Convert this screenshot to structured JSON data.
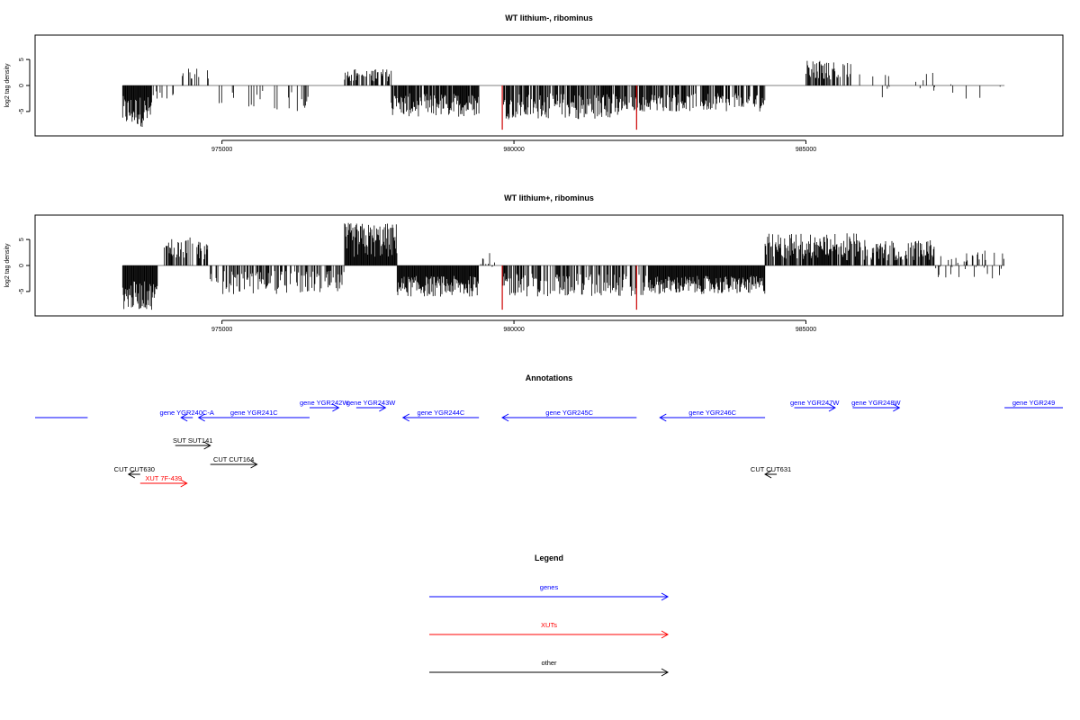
{
  "chart_data": [
    {
      "type": "bar",
      "title": "WT lithium-, ribominus",
      "ylabel": "log2 tag density",
      "xlim": [
        971800,
        989400
      ],
      "ylim": [
        -9,
        9
      ],
      "xticks": [
        975000,
        980000,
        985000
      ],
      "yticks": [
        -5,
        0,
        5
      ],
      "regions": [
        {
          "start": 973300,
          "end": 973800,
          "min": -8,
          "max": -2,
          "density": 1.0
        },
        {
          "start": 973800,
          "end": 974200,
          "min": -3,
          "max": -1,
          "density": 0.3
        },
        {
          "start": 974300,
          "end": 974800,
          "min": 1,
          "max": 3.5,
          "density": 0.25
        },
        {
          "start": 974800,
          "end": 976500,
          "min": -5,
          "max": -1,
          "density": 0.12
        },
        {
          "start": 977100,
          "end": 977900,
          "min": 0.8,
          "max": 3.2,
          "density": 0.5
        },
        {
          "start": 977900,
          "end": 979400,
          "min": -6,
          "max": -1.5,
          "density": 0.9
        },
        {
          "start": 979800,
          "end": 981800,
          "min": -6.5,
          "max": -1.5,
          "density": 0.75
        },
        {
          "start": 981800,
          "end": 982300,
          "min": -5,
          "max": -2,
          "density": 0.8
        },
        {
          "start": 982300,
          "end": 984300,
          "min": -5,
          "max": -1.5,
          "density": 0.7
        },
        {
          "start": 985000,
          "end": 985800,
          "min": 1,
          "max": 4.8,
          "density": 0.6
        },
        {
          "start": 985800,
          "end": 988400,
          "min": -3,
          "max": 2.5,
          "density": 0.06
        }
      ],
      "red_spikes": [
        {
          "x": 979800,
          "y": -8.5
        },
        {
          "x": 982100,
          "y": -8.5
        }
      ],
      "baseline_end": 988400
    },
    {
      "type": "bar",
      "title": "WT lithium+, ribominus",
      "ylabel": "log2 tag density",
      "xlim": [
        971800,
        989400
      ],
      "ylim": [
        -9,
        9
      ],
      "xticks": [
        975000,
        980000,
        985000
      ],
      "yticks": [
        -5,
        0,
        5
      ],
      "regions": [
        {
          "start": 973300,
          "end": 973900,
          "min": -8.5,
          "max": -3,
          "density": 1.0
        },
        {
          "start": 974000,
          "end": 974800,
          "min": 1,
          "max": 5.5,
          "density": 0.5
        },
        {
          "start": 974800,
          "end": 977100,
          "min": -5.5,
          "max": -1,
          "density": 0.55
        },
        {
          "start": 977100,
          "end": 978000,
          "min": 1.5,
          "max": 8.2,
          "density": 1.0
        },
        {
          "start": 978000,
          "end": 979400,
          "min": -6,
          "max": -2,
          "density": 1.0
        },
        {
          "start": 979400,
          "end": 979800,
          "min": -2,
          "max": 2.5,
          "density": 0.2
        },
        {
          "start": 979800,
          "end": 982300,
          "min": -6,
          "max": -1.5,
          "density": 0.55
        },
        {
          "start": 982300,
          "end": 984300,
          "min": -5.5,
          "max": -2,
          "density": 1.0
        },
        {
          "start": 984300,
          "end": 985900,
          "min": 1,
          "max": 6.2,
          "density": 0.85
        },
        {
          "start": 985900,
          "end": 987200,
          "min": 1,
          "max": 5,
          "density": 0.7
        },
        {
          "start": 987200,
          "end": 988400,
          "min": -3,
          "max": 3,
          "density": 0.3
        }
      ],
      "red_spikes": [
        {
          "x": 979800,
          "y": -8.5
        },
        {
          "x": 982100,
          "y": -8.5
        }
      ],
      "baseline_end": 988400
    }
  ],
  "annotations": {
    "title": "Annotations",
    "features": [
      {
        "label": "",
        "start": 971800,
        "end": 972700,
        "strand": "none",
        "color": "blue",
        "row": 1
      },
      {
        "label": "gene YGR240C-A",
        "start": 974300,
        "end": 974500,
        "strand": "-",
        "color": "blue",
        "row": 1
      },
      {
        "label": "gene YGR241C",
        "start": 974600,
        "end": 976500,
        "strand": "-",
        "color": "blue",
        "row": 1
      },
      {
        "label": "gene YGR242W",
        "start": 976500,
        "end": 977000,
        "strand": "+",
        "color": "blue",
        "row": 0
      },
      {
        "label": "gene YGR243W",
        "start": 977300,
        "end": 977800,
        "strand": "+",
        "color": "blue",
        "row": 0
      },
      {
        "label": "gene YGR244C",
        "start": 978100,
        "end": 979400,
        "strand": "-",
        "color": "blue",
        "row": 1
      },
      {
        "label": "gene YGR245C",
        "start": 979800,
        "end": 982100,
        "strand": "-",
        "color": "blue",
        "row": 1
      },
      {
        "label": "gene YGR246C",
        "start": 982500,
        "end": 984300,
        "strand": "-",
        "color": "blue",
        "row": 1
      },
      {
        "label": "gene YGR247W",
        "start": 984800,
        "end": 985500,
        "strand": "+",
        "color": "blue",
        "row": 0
      },
      {
        "label": "gene YGR248W",
        "start": 985800,
        "end": 986600,
        "strand": "+",
        "color": "blue",
        "row": 0
      },
      {
        "label": "gene YGR249",
        "start": 988400,
        "end": 989400,
        "strand": "none",
        "color": "blue",
        "row": 0
      },
      {
        "label": "SUT SUT141",
        "start": 974200,
        "end": 974800,
        "strand": "+",
        "color": "black",
        "row": 2
      },
      {
        "label": "CUT CUT164",
        "start": 974800,
        "end": 975600,
        "strand": "+",
        "color": "black",
        "row": 3
      },
      {
        "label": "CUT CUT630",
        "start": 973400,
        "end": 973600,
        "strand": "-",
        "color": "black",
        "row": 4
      },
      {
        "label": "XUT 7F-439",
        "start": 973600,
        "end": 974400,
        "strand": "+",
        "color": "red",
        "row": 5
      },
      {
        "label": "CUT CUT631",
        "start": 984300,
        "end": 984500,
        "strand": "-",
        "color": "black",
        "row": 4
      }
    ]
  },
  "legend": {
    "title": "Legend",
    "items": [
      {
        "label": "genes",
        "color": "#0000ff"
      },
      {
        "label": "XUTs",
        "color": "#ff0000"
      },
      {
        "label": "other",
        "color": "#000000"
      }
    ]
  },
  "colors": {
    "genes": "#0000ff",
    "xuts": "#ff0000",
    "other": "#000000",
    "spike": "#cc0000"
  }
}
